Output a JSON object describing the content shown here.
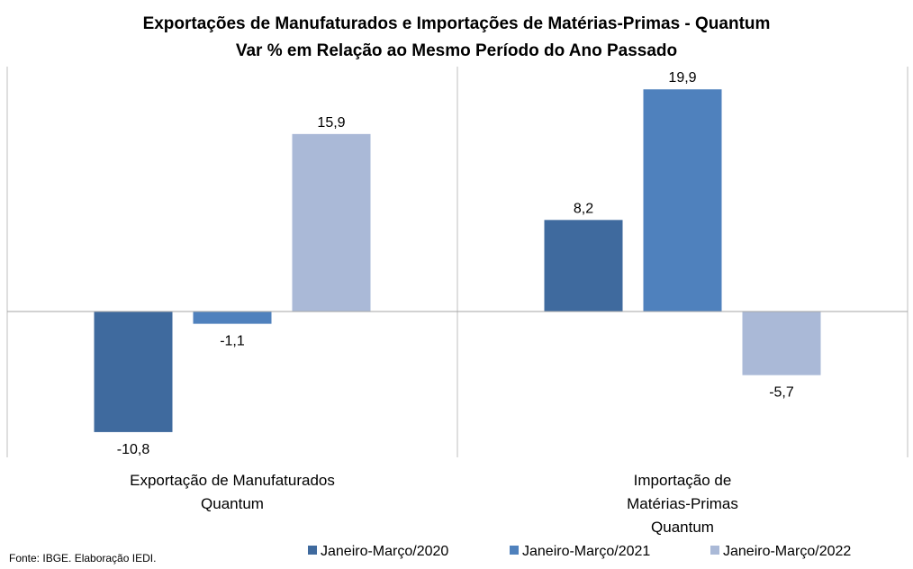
{
  "chart_data": {
    "type": "bar",
    "title": "Exportações de Manufaturados e Importações de Matérias-Primas - Quantum",
    "subtitle": "Var % em Relação ao Mesmo Período do Ano Passado",
    "categories": [
      [
        "Exportação de Manufaturados",
        "Quantum"
      ],
      [
        "Importação de",
        "Matérias-Primas",
        "Quantum"
      ]
    ],
    "series": [
      {
        "name": "Janeiro-Março/2020",
        "color": "#3f6a9e",
        "values": [
          -10.8,
          8.2
        ],
        "labels": [
          "-10,8",
          "8,2"
        ]
      },
      {
        "name": "Janeiro-Março/2021",
        "color": "#4f81bd",
        "values": [
          -1.1,
          19.9
        ],
        "labels": [
          "-1,1",
          "19,9"
        ]
      },
      {
        "name": "Janeiro-Março/2022",
        "color": "#aab9d7",
        "values": [
          15.9,
          -5.7
        ],
        "labels": [
          "15,9",
          "-5,7"
        ]
      }
    ],
    "ylim": [
      -13,
      22
    ],
    "xlabel": "",
    "ylabel": "",
    "grid": false,
    "legend": "bottom",
    "source": "Fonte: IBGE. Elaboração IEDI."
  }
}
